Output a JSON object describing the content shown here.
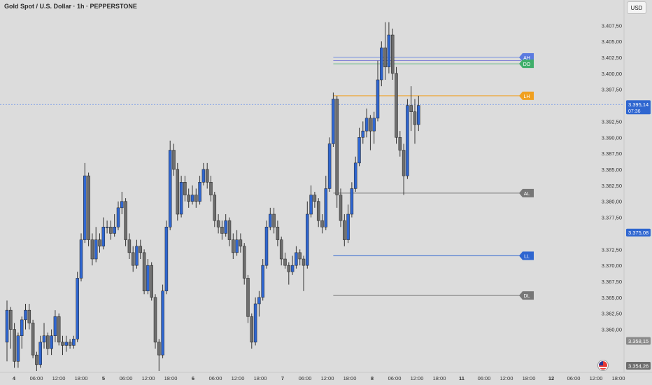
{
  "header": {
    "title": "Gold Spot / U.S. Dollar · 1h · PEPPERSTONE",
    "currency": "USD"
  },
  "colors": {
    "bull": "#2f66d0",
    "bear": "#6e6e6e",
    "wick": "#333333",
    "grid": "#cfcfcf"
  },
  "chart_data": {
    "type": "candlestick",
    "x_axis": {
      "tick_labels": [
        "4",
        "06:00",
        "12:00",
        "18:00",
        "5",
        "06:00",
        "12:00",
        "18:00",
        "6",
        "06:00",
        "12:00",
        "18:00",
        "7",
        "06:00",
        "12:00",
        "18:00",
        "8",
        "06:00",
        "12:00",
        "18:00",
        "11",
        "06:00",
        "12:00",
        "18:00",
        "12",
        "06:00",
        "12:00",
        "18:00"
      ],
      "bold_labels": [
        "4",
        "5",
        "6",
        "7",
        "8",
        "11",
        "12"
      ]
    },
    "y_axis": {
      "ylim": [
        3353.5,
        3409.5
      ],
      "tick_values": [
        3407.5,
        3405,
        3402.5,
        3400,
        3397.5,
        3392.5,
        3390,
        3387.5,
        3385,
        3382.5,
        3380,
        3377.5,
        3372.5,
        3370,
        3367.5,
        3365,
        3362.5,
        3360
      ],
      "tick_labels": [
        "3.407,50",
        "3.405,00",
        "3.402,50",
        "3.400,00",
        "3.397,50",
        "3.392,50",
        "3.390,00",
        "3.387,50",
        "3.385,00",
        "3.382,50",
        "3.380,00",
        "3.377,50",
        "3.372,50",
        "3.370,00",
        "3.367,50",
        "3.365,00",
        "3.362,50",
        "3.360,00"
      ]
    },
    "price_badges": [
      {
        "label": "3.395,14",
        "sub": "07:36",
        "value": 3395.14,
        "color": "#2f66d0"
      },
      {
        "label": "3.375,08",
        "value": 3375.08,
        "color": "#2f66d0"
      },
      {
        "label": "3.358,15",
        "value": 3358.15,
        "color": "#8a8a8a"
      },
      {
        "label": "3.354,26",
        "value": 3354.26,
        "color": "#6e6e6e"
      }
    ],
    "levels": [
      {
        "label": "AH",
        "value": 3402.5,
        "color": "#5b7be0",
        "start": 93,
        "lw": 0.8
      },
      {
        "label": "",
        "value": 3402.0,
        "color": "#7a7ad6",
        "start": 93,
        "lw": 0.8
      },
      {
        "label": "DO",
        "value": 3401.5,
        "color": "#3fae6a",
        "start": 93,
        "lw": 0.8
      },
      {
        "label": "LH",
        "value": 3396.5,
        "color": "#f0a020",
        "start": 93,
        "lw": 1
      },
      {
        "label": "AL",
        "value": 3381.3,
        "color": "#777777",
        "start": 93,
        "lw": 1
      },
      {
        "label": "LL",
        "value": 3371.5,
        "color": "#2f66d0",
        "start": 93,
        "lw": 1
      },
      {
        "label": "DL",
        "value": 3365.3,
        "color": "#777777",
        "start": 93,
        "lw": 1
      }
    ],
    "current_price_line": 3395.14,
    "candles": [
      [
        3358,
        3363,
        3355,
        3364.5
      ],
      [
        3363,
        3360,
        3357,
        3363.5
      ],
      [
        3360,
        3355,
        3354,
        3361
      ],
      [
        3355,
        3359,
        3354,
        3359.5
      ],
      [
        3359,
        3361.5,
        3357,
        3362
      ],
      [
        3361.5,
        3363,
        3360,
        3364
      ],
      [
        3363,
        3361,
        3360,
        3364
      ],
      [
        3361,
        3356,
        3355.5,
        3361.5
      ],
      [
        3356,
        3354.5,
        3353.5,
        3356.5
      ],
      [
        3354.5,
        3358,
        3354,
        3359
      ],
      [
        3358,
        3359,
        3357,
        3361
      ],
      [
        3359,
        3357,
        3356,
        3359.5
      ],
      [
        3357,
        3359,
        3356,
        3360
      ],
      [
        3359,
        3362,
        3358,
        3363
      ],
      [
        3362,
        3358,
        3357.5,
        3362.5
      ],
      [
        3358,
        3357.5,
        3356,
        3359
      ],
      [
        3357.5,
        3358,
        3356.5,
        3359
      ],
      [
        3358,
        3357.5,
        3357,
        3358.5
      ],
      [
        3357.5,
        3358.5,
        3357,
        3359
      ],
      [
        3358.5,
        3368,
        3358,
        3369
      ],
      [
        3368,
        3374,
        3367.5,
        3375
      ],
      [
        3374,
        3384,
        3373.5,
        3386
      ],
      [
        3384,
        3374,
        3373,
        3384.5
      ],
      [
        3374,
        3371,
        3370,
        3375
      ],
      [
        3371,
        3374,
        3370.5,
        3376
      ],
      [
        3374,
        3373,
        3372,
        3375
      ],
      [
        3373,
        3376,
        3372.5,
        3377.5
      ],
      [
        3376,
        3376,
        3375,
        3377
      ],
      [
        3376,
        3375,
        3374,
        3377
      ],
      [
        3375,
        3376,
        3374.5,
        3378
      ],
      [
        3376,
        3379,
        3375.5,
        3380
      ],
      [
        3379,
        3380,
        3378,
        3381.5
      ],
      [
        3380,
        3374,
        3373,
        3380.5
      ],
      [
        3374,
        3372,
        3371,
        3375
      ],
      [
        3372,
        3370,
        3369,
        3373
      ],
      [
        3370,
        3373,
        3369.5,
        3374
      ],
      [
        3373,
        3372,
        3371,
        3374
      ],
      [
        3372,
        3366,
        3365.5,
        3372.5
      ],
      [
        3366,
        3370,
        3365.5,
        3371
      ],
      [
        3370,
        3365,
        3364.5,
        3370.5
      ],
      [
        3365,
        3358,
        3357,
        3365.5
      ],
      [
        3358,
        3356,
        3353.5,
        3358.5
      ],
      [
        3356,
        3366,
        3355.5,
        3367
      ],
      [
        3366,
        3376,
        3365.5,
        3377
      ],
      [
        3376,
        3388,
        3375.5,
        3389.5
      ],
      [
        3388,
        3385,
        3384,
        3389
      ],
      [
        3385,
        3378,
        3377,
        3386
      ],
      [
        3378,
        3383,
        3377.5,
        3384
      ],
      [
        3383,
        3381,
        3380,
        3384
      ],
      [
        3381,
        3380,
        3379,
        3382
      ],
      [
        3380,
        3381,
        3379.5,
        3382.5
      ],
      [
        3381,
        3380,
        3379,
        3382
      ],
      [
        3380,
        3383,
        3379.5,
        3384
      ],
      [
        3383,
        3385,
        3382.5,
        3386
      ],
      [
        3385,
        3383,
        3382,
        3386
      ],
      [
        3383,
        3381,
        3380,
        3384
      ],
      [
        3381,
        3377,
        3376,
        3381.5
      ],
      [
        3377,
        3376,
        3375,
        3378
      ],
      [
        3376,
        3375,
        3374,
        3377
      ],
      [
        3375,
        3377,
        3374.5,
        3378
      ],
      [
        3377,
        3374,
        3373,
        3377.5
      ],
      [
        3374,
        3372,
        3371,
        3375
      ],
      [
        3372,
        3374,
        3371.5,
        3375.5
      ],
      [
        3374,
        3373,
        3372,
        3375
      ],
      [
        3373,
        3368,
        3367,
        3373.5
      ],
      [
        3368,
        3362,
        3361,
        3368.5
      ],
      [
        3362,
        3358,
        3357,
        3362.5
      ],
      [
        3358,
        3364,
        3357.5,
        3365
      ],
      [
        3364,
        3365,
        3362,
        3366
      ],
      [
        3365,
        3370,
        3364.5,
        3371
      ],
      [
        3370,
        3376,
        3369.5,
        3377
      ],
      [
        3376,
        3378,
        3375.5,
        3379
      ],
      [
        3378,
        3376,
        3375,
        3379
      ],
      [
        3376,
        3374,
        3373,
        3377
      ],
      [
        3374,
        3371,
        3370,
        3374.5
      ],
      [
        3371,
        3370,
        3369.5,
        3372
      ],
      [
        3370,
        3369,
        3367,
        3370.5
      ],
      [
        3369,
        3370,
        3368.5,
        3371.5
      ],
      [
        3370,
        3372,
        3369.5,
        3373
      ],
      [
        3372,
        3371,
        3370,
        3372.5
      ],
      [
        3371,
        3370,
        3366,
        3371.5
      ],
      [
        3370,
        3378,
        3369.5,
        3380
      ],
      [
        3378,
        3381,
        3377.5,
        3382.5
      ],
      [
        3381,
        3380,
        3379,
        3381.5
      ],
      [
        3380,
        3377,
        3376,
        3380.5
      ],
      [
        3377,
        3376,
        3375,
        3378
      ],
      [
        3376,
        3382,
        3375.5,
        3384
      ],
      [
        3382,
        3389,
        3381.5,
        3390
      ],
      [
        3389,
        3396,
        3388.5,
        3397
      ],
      [
        3396,
        3381,
        3379,
        3396.5
      ],
      [
        3381,
        3377,
        3376,
        3382
      ],
      [
        3377,
        3374,
        3373,
        3378
      ],
      [
        3374,
        3378,
        3373.5,
        3379.5
      ],
      [
        3378,
        3382,
        3377.5,
        3383
      ],
      [
        3382,
        3386,
        3381.5,
        3387
      ],
      [
        3386,
        3390,
        3385.5,
        3391.5
      ],
      [
        3390,
        3391,
        3389,
        3392.5
      ],
      [
        3391,
        3393,
        3390,
        3394.5
      ],
      [
        3393,
        3391,
        3388,
        3393.5
      ],
      [
        3391,
        3393,
        3389,
        3394
      ],
      [
        3393,
        3399,
        3392.5,
        3402
      ],
      [
        3399,
        3404,
        3398,
        3405
      ],
      [
        3404,
        3401,
        3399,
        3408
      ],
      [
        3401,
        3406,
        3400,
        3408
      ],
      [
        3406,
        3400,
        3399,
        3407
      ],
      [
        3400,
        3390,
        3389,
        3401
      ],
      [
        3390,
        3388,
        3387,
        3391
      ],
      [
        3388,
        3384,
        3381,
        3389
      ],
      [
        3384,
        3395,
        3383.5,
        3396
      ],
      [
        3395,
        3394,
        3391,
        3398
      ],
      [
        3394,
        3392,
        3389,
        3396
      ],
      [
        3392,
        3395,
        3391,
        3396.5
      ]
    ]
  }
}
